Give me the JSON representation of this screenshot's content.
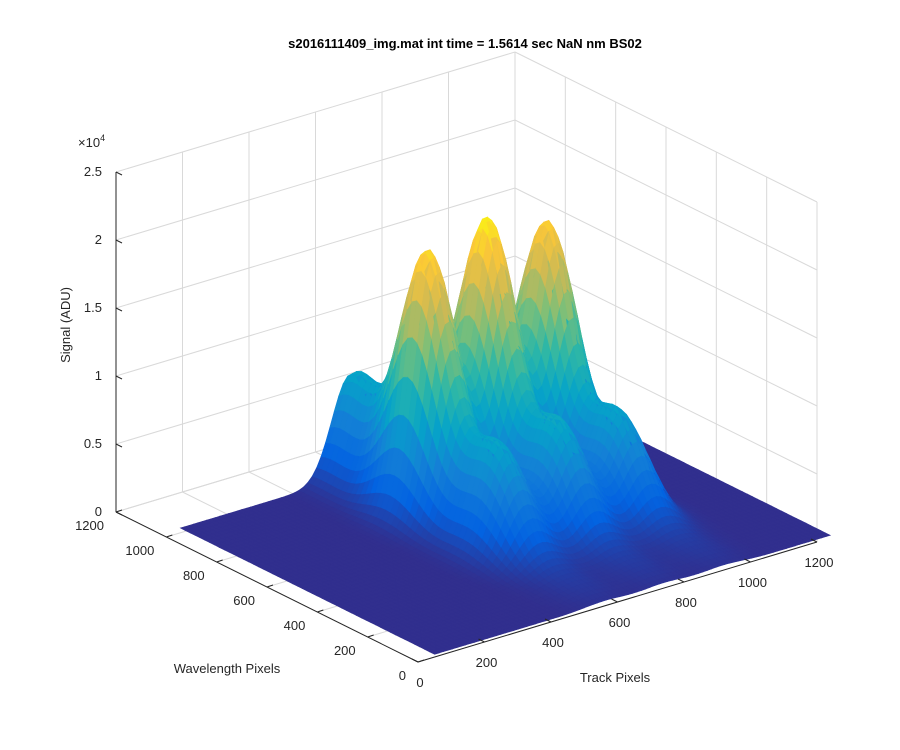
{
  "chart_data": {
    "type": "surface3d",
    "title": "s2016111409_img.mat int time = 1.5614 sec  NaN nm BS02",
    "xlabel": "Track Pixels",
    "ylabel": "Wavelength Pixels",
    "zlabel": "Signal (ADU)",
    "z_exponent_label": "×10",
    "z_exponent_power": "4",
    "xlim": [
      0,
      1200
    ],
    "ylim": [
      0,
      1200
    ],
    "zlim": [
      0,
      25000
    ],
    "x_ticks": [
      "0",
      "200",
      "400",
      "600",
      "800",
      "1000",
      "1200"
    ],
    "y_ticks": [
      "0",
      "200",
      "400",
      "600",
      "800",
      "1000",
      "1200"
    ],
    "z_ticks": [
      "0",
      "0.5",
      "1",
      "1.5",
      "2",
      "2.5"
    ],
    "grid": true,
    "colormap": "parula",
    "peaks": [
      {
        "track_center": 560,
        "track_width": 55,
        "wavelength_center": 700,
        "wavelength_width": 230,
        "peak": 19500
      },
      {
        "track_center": 740,
        "track_width": 55,
        "wavelength_center": 700,
        "wavelength_width": 230,
        "peak": 20500
      },
      {
        "track_center": 920,
        "track_width": 55,
        "wavelength_center": 700,
        "wavelength_width": 230,
        "peak": 19000
      }
    ],
    "background_level": 200
  }
}
